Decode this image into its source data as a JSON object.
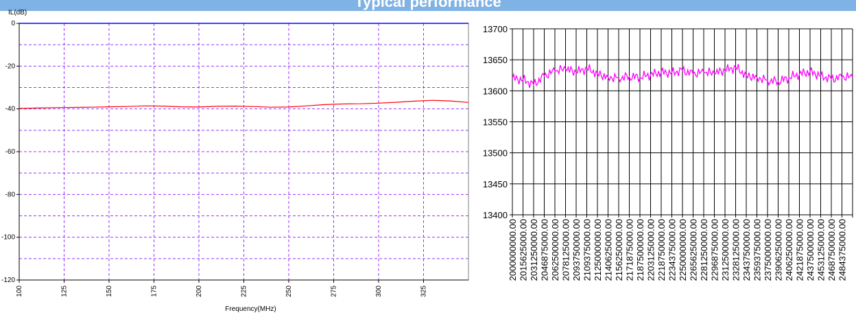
{
  "header": {
    "title": "Typical performance"
  },
  "chart_data": [
    {
      "type": "line",
      "title": "",
      "xlabel": "Frequency(MHz)",
      "ylabel": "IL(dB)",
      "xlim": [
        100,
        350
      ],
      "ylim": [
        -120,
        0
      ],
      "x_ticks": [
        "100",
        "125",
        "150",
        "175",
        "200",
        "225",
        "250",
        "275",
        "300",
        "325"
      ],
      "y_ticks": [
        "0",
        "-20",
        "-40",
        "-60",
        "-80",
        "-100",
        "-120"
      ],
      "grid": true,
      "grid_color": "#9933ff",
      "line_color": "#ff0000",
      "axis_line_color": "#0000ff",
      "series": [
        {
          "x": [
            100,
            110,
            120,
            130,
            140,
            150,
            160,
            170,
            180,
            190,
            200,
            210,
            220,
            230,
            240,
            250,
            260,
            270,
            280,
            290,
            300,
            310,
            320,
            330,
            340,
            350
          ],
          "values": [
            -39.8,
            -39.6,
            -39.4,
            -39.3,
            -39.2,
            -39.0,
            -38.9,
            -38.6,
            -38.7,
            -39.0,
            -39.1,
            -38.8,
            -38.7,
            -38.9,
            -39.2,
            -39.1,
            -38.6,
            -38.0,
            -37.7,
            -37.6,
            -37.3,
            -36.9,
            -36.4,
            -36.0,
            -36.3,
            -37.0
          ]
        }
      ]
    },
    {
      "type": "line",
      "title": "",
      "xlabel": "",
      "ylabel": "",
      "ylim": [
        13400,
        13700
      ],
      "y_ticks": [
        "13700",
        "13650",
        "13600",
        "13550",
        "13500",
        "13450",
        "13400"
      ],
      "x_ticks": [
        "2000000000.00",
        "2015625000.00",
        "2031250000.00",
        "2046875000.00",
        "2062500000.00",
        "2078125000.00",
        "2093750000.00",
        "2109375000.00",
        "2125000000.00",
        "2140625000.00",
        "2156250000.00",
        "2171875000.00",
        "2187500000.00",
        "2203125000.00",
        "2218750000.00",
        "2234375000.00",
        "2250000000.00",
        "2265625000.00",
        "2281250000.00",
        "2296875000.00",
        "2312500000.00",
        "2328125000.00",
        "2343750000.00",
        "2359375000.00",
        "2375000000.00",
        "2390625000.00",
        "2406250000.00",
        "2421875000.00",
        "2437500000.00",
        "2453125000.00",
        "2468750000.00",
        "2484375000.00"
      ],
      "grid": true,
      "line_color": "#ff00ff",
      "series": [
        {
          "x": [
            2000000000,
            2015625000,
            2031250000,
            2046875000,
            2062500000,
            2078125000,
            2093750000,
            2109375000,
            2125000000,
            2140625000,
            2156250000,
            2171875000,
            2187500000,
            2203125000,
            2218750000,
            2234375000,
            2250000000,
            2265625000,
            2281250000,
            2296875000,
            2312500000,
            2328125000,
            2343750000,
            2359375000,
            2375000000,
            2390625000,
            2406250000,
            2421875000,
            2437500000,
            2453125000,
            2468750000,
            2484375000,
            2500000000
          ],
          "values": [
            13620,
            13618,
            13610,
            13624,
            13632,
            13635,
            13630,
            13636,
            13628,
            13622,
            13621,
            13623,
            13622,
            13626,
            13630,
            13629,
            13633,
            13627,
            13630,
            13628,
            13633,
            13638,
            13625,
            13622,
            13617,
            13615,
            13621,
            13627,
            13631,
            13624,
            13619,
            13622,
            13622
          ]
        }
      ]
    }
  ]
}
